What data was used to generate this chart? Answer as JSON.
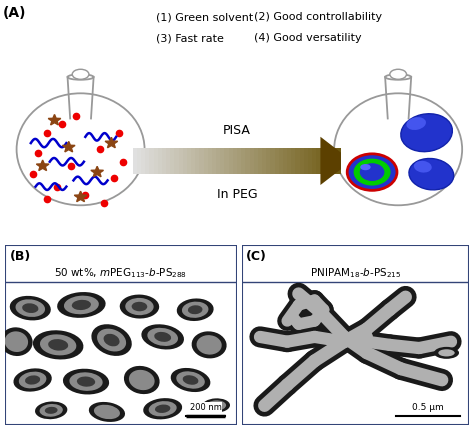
{
  "title_A": "(A)",
  "title_B": "(B)",
  "title_C": "(C)",
  "text_left1": "(1) Green solvent",
  "text_left2": "(3) Fast rate",
  "text_right1": "(2) Good controllability",
  "text_right2": "(4) Good versatility",
  "arrow_top": "PISA",
  "arrow_bottom": "In PEG",
  "scale_B": "200 nm",
  "scale_C": "0.5 μm",
  "flask_outline": "#999999",
  "green_color": "#00dd00",
  "dot_color": "#ee0000",
  "wave_color": "#0000cc",
  "star_color": "#8B4513",
  "bg_color": "#ffffff",
  "border_color": "#334477",
  "tem_bg_B": "#aaaaaa",
  "tem_bg_C": "#c0c0c0",
  "vesicle_dark": "#222222",
  "vesicle_light": "#888888"
}
